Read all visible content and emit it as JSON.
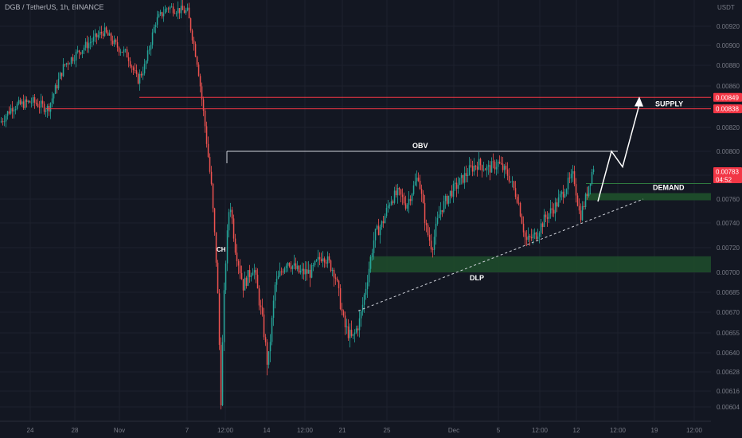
{
  "header": {
    "symbol_info": "DGB / TetherUS, 1h, BINANCE"
  },
  "chart_data": {
    "type": "candlestick",
    "currency_label": "USDT",
    "y_ticks": [
      "0.00920",
      "0.00900",
      "0.00880",
      "0.00860",
      "0.00840",
      "0.00820",
      "0.00800",
      "0.00780",
      "0.00760",
      "0.00740",
      "0.00720",
      "0.00700",
      "0.00685",
      "0.00670",
      "0.00655",
      "0.00640",
      "0.00628",
      "0.00616",
      "0.00604"
    ],
    "x_ticks": [
      "24",
      "28",
      "Nov",
      "7",
      "12:00",
      "14",
      "12:00",
      "21",
      "25",
      "Dec",
      "5",
      "12:00",
      "12",
      "12:00",
      "19",
      "12:00"
    ],
    "price_tags": [
      {
        "label": "0.00849",
        "color": "#f23645"
      },
      {
        "label": "0.00838",
        "color": "#f23645"
      },
      {
        "label": "0.00783",
        "sub": "04:52",
        "color": "#f23645"
      }
    ],
    "annotations": {
      "supply": "SUPPLY",
      "obv": "OBV",
      "demand": "DEMAND",
      "dlp": "DLP",
      "ch": "CH"
    },
    "colors": {
      "up": "#26a69a",
      "down": "#ef5350",
      "background": "#131722",
      "grid": "#1e222d",
      "zone": "#1e4d2b",
      "line_red": "#f23645"
    }
  }
}
